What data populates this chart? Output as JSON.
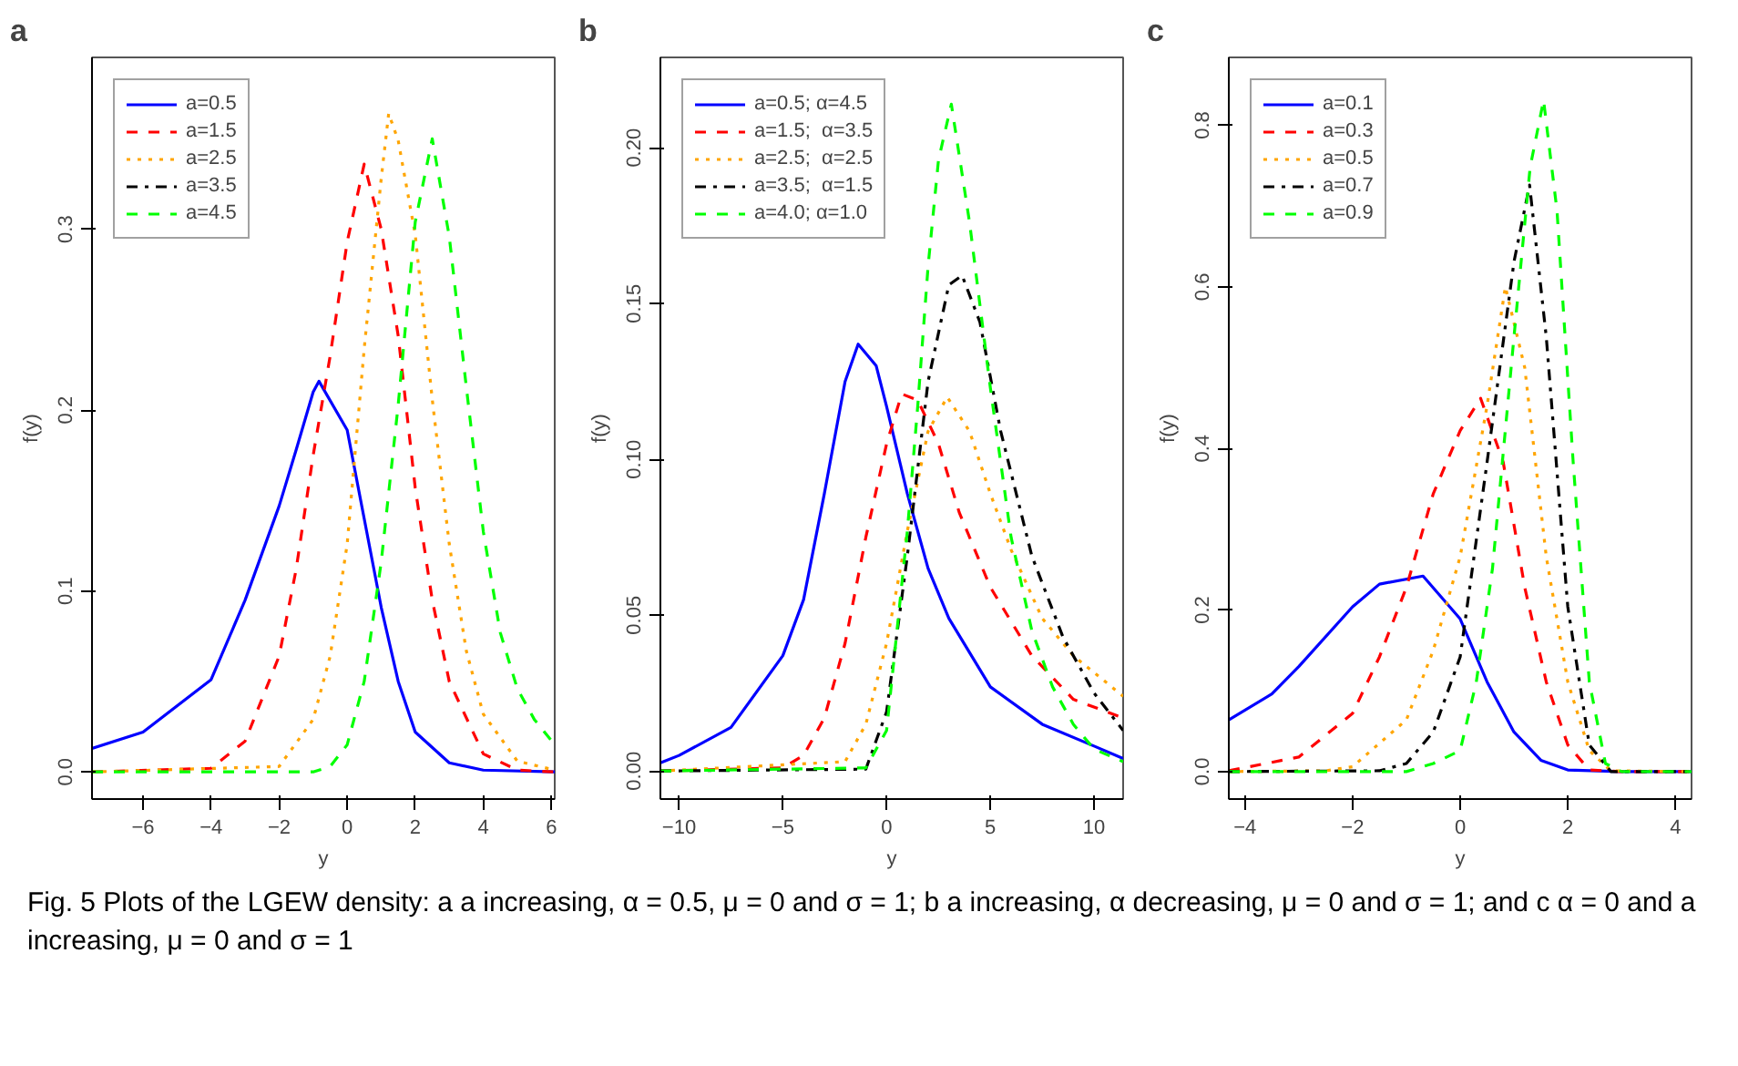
{
  "chart_data": [
    {
      "type": "line",
      "title": "a",
      "xlabel": "y",
      "ylabel": "f(y)",
      "xlim": [
        -7.5,
        6.1
      ],
      "ylim": [
        -0.015,
        0.395
      ],
      "xticks": [
        -6,
        -4,
        -2,
        0,
        2,
        4,
        6
      ],
      "yticks": [
        {
          "value": 0,
          "label": "0.0"
        },
        0.1,
        0.2,
        0.3
      ],
      "grid": false,
      "legend": "top left",
      "annotations": [
        "Fig. 5  Plots of the LGEW density: a a increasing, α = 0.5, μ = 0 and σ = 1; b a increasing, α decreasing, μ = 0 and σ = 1; and c α = 0 and a increasing, μ = 0 and σ = 1"
      ],
      "series": [
        {
          "name": "a=0.5",
          "color": "#0000ff",
          "line_style": "solid",
          "x": [
            -7.5,
            -6,
            -4,
            -3,
            -2,
            -1.5,
            -1,
            -0.83,
            0,
            0.5,
            1,
            1.5,
            2,
            3,
            4,
            6.1
          ],
          "values": [
            0.013,
            0.022,
            0.051,
            0.095,
            0.147,
            0.178,
            0.21,
            0.216,
            0.189,
            0.14,
            0.091,
            0.05,
            0.022,
            0.005,
            0.001,
            0
          ]
        },
        {
          "name": "a=1.5",
          "color": "#ff0000",
          "line_style": "dashed",
          "x": [
            -7.5,
            -4,
            -3,
            -2,
            -1.5,
            -1,
            -0.5,
            0,
            0.5,
            1,
            1.5,
            2,
            2.5,
            3,
            4,
            5,
            6.1
          ],
          "values": [
            0,
            0.002,
            0.017,
            0.064,
            0.112,
            0.175,
            0.23,
            0.293,
            0.336,
            0.3,
            0.241,
            0.157,
            0.095,
            0.05,
            0.01,
            0.001,
            0
          ]
        },
        {
          "name": "a=2.5",
          "color": "#ffa500",
          "line_style": "dotted",
          "x": [
            -7.5,
            -2,
            -1,
            -0.5,
            0,
            0.5,
            1,
            1.22,
            1.5,
            2,
            2.5,
            3,
            3.5,
            4,
            5,
            6.1
          ],
          "values": [
            0,
            0.003,
            0.029,
            0.064,
            0.126,
            0.234,
            0.328,
            0.364,
            0.349,
            0.297,
            0.206,
            0.126,
            0.067,
            0.032,
            0.006,
            0.001
          ]
        },
        {
          "name": "a=3.5",
          "color": "#000000",
          "line_style": "dashdot"
        },
        {
          "name": "a=4.5",
          "color": "#00ff00",
          "line_style": "dashed",
          "x": [
            -7.5,
            -1,
            -0.5,
            0,
            0.5,
            1,
            1.5,
            2,
            2.5,
            3,
            3.5,
            4,
            4.5,
            5,
            5.5,
            6.1
          ],
          "values": [
            0,
            0,
            0.003,
            0.015,
            0.05,
            0.116,
            0.203,
            0.304,
            0.35,
            0.296,
            0.213,
            0.133,
            0.077,
            0.046,
            0.029,
            0.015
          ]
        }
      ]
    },
    {
      "type": "line",
      "title": "b",
      "xlabel": "y",
      "ylabel": "f(y)",
      "xlim": [
        -10.9,
        11.4
      ],
      "ylim": [
        -0.009,
        0.229
      ],
      "xticks": [
        -10,
        -5,
        0,
        5,
        10
      ],
      "yticks": [
        {
          "value": 0,
          "label": "0.00"
        },
        0.05,
        {
          "value": 0.1,
          "label": "0.10"
        },
        0.15,
        {
          "value": 0.2,
          "label": "0.20"
        }
      ],
      "grid": false,
      "legend": "top left",
      "series": [
        {
          "name": "a=0.5; α=4.5",
          "color": "#0000ff",
          "line_style": "solid",
          "x": [
            -10.9,
            -10,
            -7.5,
            -5,
            -4,
            -3,
            -2,
            -1.37,
            -0.5,
            0,
            1,
            2,
            3,
            5,
            7.5,
            10,
            11.4
          ],
          "values": [
            0.0026,
            0.005,
            0.014,
            0.037,
            0.055,
            0.089,
            0.125,
            0.137,
            0.13,
            0.117,
            0.089,
            0.065,
            0.049,
            0.027,
            0.015,
            0.008,
            0.004
          ]
        },
        {
          "name": "a=1.5;  α=3.5",
          "color": "#ff0000",
          "line_style": "dashed",
          "x": [
            -10.9,
            -5,
            -4,
            -3,
            -2,
            -1,
            0,
            0.73,
            1.5,
            2.5,
            3.5,
            5,
            7,
            9,
            11.4
          ],
          "values": [
            0,
            0.001,
            0.005,
            0.017,
            0.041,
            0.075,
            0.105,
            0.121,
            0.119,
            0.105,
            0.083,
            0.059,
            0.037,
            0.023,
            0.017
          ]
        },
        {
          "name": "a=2.5;  α=2.5",
          "color": "#ffa500",
          "line_style": "dotted",
          "x": [
            -10.9,
            -2,
            -1,
            0,
            1,
            2,
            2.92,
            4,
            5,
            6,
            7.5,
            9,
            11.4
          ],
          "values": [
            0,
            0.003,
            0.015,
            0.041,
            0.077,
            0.109,
            0.12,
            0.109,
            0.089,
            0.071,
            0.049,
            0.037,
            0.024
          ]
        },
        {
          "name": "a=3.5;  α=1.5",
          "color": "#000000",
          "line_style": "dashdot",
          "x": [
            -10.9,
            -1,
            0,
            1,
            2,
            3,
            3.64,
            4.5,
            5.5,
            7,
            8.5,
            10,
            11.4
          ],
          "values": [
            0,
            0.0006,
            0.019,
            0.069,
            0.125,
            0.156,
            0.159,
            0.144,
            0.109,
            0.069,
            0.043,
            0.025,
            0.013
          ]
        },
        {
          "name": "a=4.0; α=1.0",
          "color": "#00ff00",
          "line_style": "dashed",
          "x": [
            -10.9,
            -1,
            0,
            0.5,
            1,
            1.5,
            2,
            2.5,
            3.12,
            4,
            5,
            6,
            7,
            8,
            9,
            10,
            11.4
          ],
          "values": [
            0,
            0.001,
            0.013,
            0.045,
            0.077,
            0.117,
            0.162,
            0.196,
            0.214,
            0.176,
            0.123,
            0.075,
            0.045,
            0.027,
            0.015,
            0.007,
            0.003
          ]
        }
      ]
    },
    {
      "type": "line",
      "title": "c",
      "xlabel": "y",
      "ylabel": "f(y)",
      "xlim": [
        -4.3,
        4.3
      ],
      "ylim": [
        -0.034,
        0.884
      ],
      "xticks": [
        -4,
        -2,
        0,
        2,
        4
      ],
      "yticks": [
        {
          "value": 0,
          "label": "0.0"
        },
        0.2,
        0.4,
        0.6,
        0.8
      ],
      "grid": false,
      "legend": "top left",
      "series": [
        {
          "name": "a=0.1",
          "color": "#0000ff",
          "line_style": "solid",
          "x": [
            -4.3,
            -3.5,
            -3,
            -2,
            -1.5,
            -0.69,
            0,
            0.5,
            1,
            1.5,
            2,
            3,
            4.3
          ],
          "values": [
            0.064,
            0.096,
            0.13,
            0.204,
            0.232,
            0.242,
            0.189,
            0.111,
            0.049,
            0.014,
            0.002,
            0,
            0
          ]
        },
        {
          "name": "a=0.3",
          "color": "#ff0000",
          "line_style": "dashed",
          "x": [
            -4.3,
            -3,
            -2,
            -1.5,
            -1,
            -0.5,
            0,
            0.38,
            0.8,
            1.2,
            1.6,
            2,
            2.4,
            3,
            4.3
          ],
          "values": [
            0.001,
            0.018,
            0.072,
            0.142,
            0.228,
            0.344,
            0.422,
            0.462,
            0.383,
            0.228,
            0.111,
            0.033,
            0.002,
            0,
            0
          ]
        },
        {
          "name": "a=0.5",
          "color": "#ffa500",
          "line_style": "dotted",
          "x": [
            -4.3,
            -2.5,
            -2,
            -1,
            -0.5,
            0,
            0.5,
            0.84,
            1.2,
            1.6,
            2,
            2.4,
            2.8,
            4.3
          ],
          "values": [
            0,
            0.001,
            0.006,
            0.064,
            0.15,
            0.266,
            0.453,
            0.6,
            0.5,
            0.266,
            0.111,
            0.026,
            0.001,
            0
          ]
        },
        {
          "name": "a=0.7",
          "color": "#000000",
          "line_style": "dashdot",
          "x": [
            -4.3,
            -1.5,
            -1,
            -0.5,
            0,
            0.5,
            1,
            1.29,
            1.6,
            2,
            2.4,
            2.8,
            4.3
          ],
          "values": [
            0,
            0.001,
            0.01,
            0.049,
            0.142,
            0.383,
            0.631,
            0.726,
            0.538,
            0.204,
            0.033,
            0,
            0
          ]
        },
        {
          "name": "a=0.9",
          "color": "#00ff00",
          "line_style": "dashed",
          "x": [
            -4.3,
            -1,
            -0.5,
            0,
            0.3,
            0.6,
            1,
            1.3,
            1.55,
            1.8,
            2.1,
            2.4,
            2.7,
            3,
            4.3
          ],
          "values": [
            0,
            0,
            0.01,
            0.026,
            0.111,
            0.251,
            0.538,
            0.748,
            0.831,
            0.694,
            0.383,
            0.111,
            0.01,
            0,
            0
          ]
        }
      ]
    }
  ]
}
